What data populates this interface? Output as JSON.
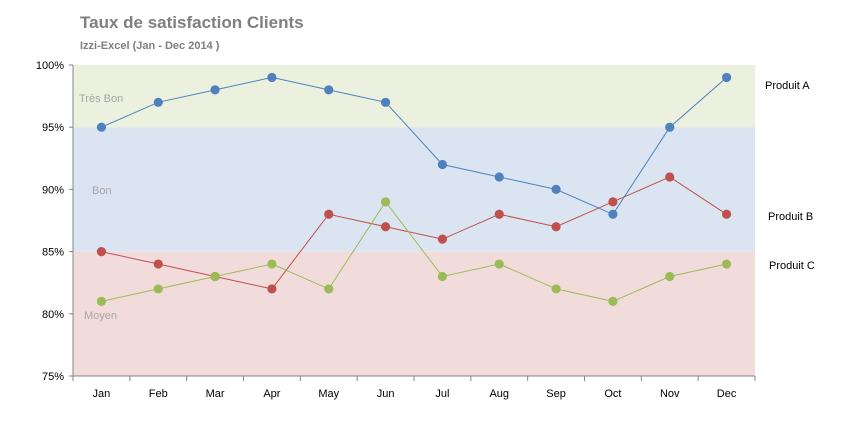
{
  "chart_data": {
    "type": "line",
    "title": "Taux de satisfaction Clients",
    "subtitle": "Izzi-Excel  (Jan  - Dec 2014 )",
    "categories": [
      "Jan",
      "Feb",
      "Mar",
      "Apr",
      "May",
      "Jun",
      "Jul",
      "Aug",
      "Sep",
      "Oct",
      "Nov",
      "Dec"
    ],
    "ylim": [
      75,
      100
    ],
    "yticks": [
      75,
      80,
      85,
      90,
      95,
      100
    ],
    "ytick_labels": [
      "75%",
      "80%",
      "85%",
      "90%",
      "95%",
      "100%"
    ],
    "bands": [
      {
        "name": "Très Bon",
        "from": 95,
        "to": 100,
        "color": "#ebf1de"
      },
      {
        "name": "Bon",
        "from": 85,
        "to": 95,
        "color": "#dbe5f1"
      },
      {
        "name": "Moyen",
        "from": 75,
        "to": 85,
        "color": "#f2dcdb"
      }
    ],
    "series": [
      {
        "name": "Produit A",
        "color": "#4f81bd",
        "values": [
          95,
          97,
          98,
          99,
          98,
          97,
          92,
          91,
          90,
          88,
          95,
          99
        ]
      },
      {
        "name": "Produit B",
        "color": "#c0504d",
        "values": [
          85,
          84,
          83,
          82,
          88,
          87,
          86,
          88,
          87,
          89,
          91,
          88
        ]
      },
      {
        "name": "Produit C",
        "color": "#9bbb59",
        "values": [
          81,
          82,
          83,
          84,
          82,
          89,
          83,
          84,
          82,
          81,
          83,
          84
        ]
      }
    ]
  }
}
